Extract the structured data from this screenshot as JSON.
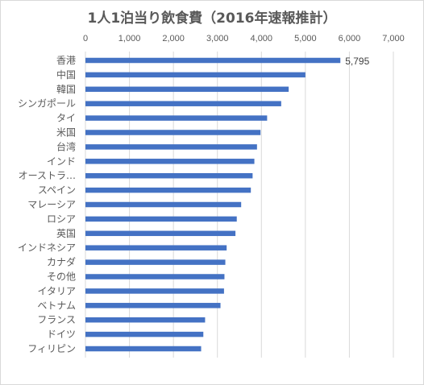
{
  "chart_data": {
    "type": "bar",
    "orientation": "horizontal",
    "title": "1人1泊当り飲食費（2016年速報推計）",
    "xlabel": "",
    "ylabel": "",
    "xlim": [
      0,
      7000
    ],
    "x_ticks": [
      0,
      1000,
      2000,
      3000,
      4000,
      5000,
      6000,
      7000
    ],
    "x_tick_labels": [
      "0",
      "1,000",
      "2,000",
      "3,000",
      "4,000",
      "5,000",
      "6,000",
      "7,000"
    ],
    "x_axis_position": "top",
    "grid": true,
    "legend": "none",
    "bar_color": "#4472c4",
    "categories": [
      "香港",
      "中国",
      "韓国",
      "シンガポール",
      "タイ",
      "米国",
      "台湾",
      "インド",
      "オーストラ…",
      "スペイン",
      "マレーシア",
      "ロシア",
      "英国",
      "インドネシア",
      "カナダ",
      "その他",
      "イタリア",
      "ベトナム",
      "フランス",
      "ドイツ",
      "フィリピン"
    ],
    "values": [
      5795,
      5000,
      4620,
      4450,
      4130,
      3980,
      3900,
      3840,
      3800,
      3760,
      3540,
      3440,
      3410,
      3210,
      3180,
      3160,
      3150,
      3070,
      2720,
      2680,
      2630
    ],
    "data_labels": [
      {
        "index": 0,
        "text": "5,795"
      }
    ]
  }
}
